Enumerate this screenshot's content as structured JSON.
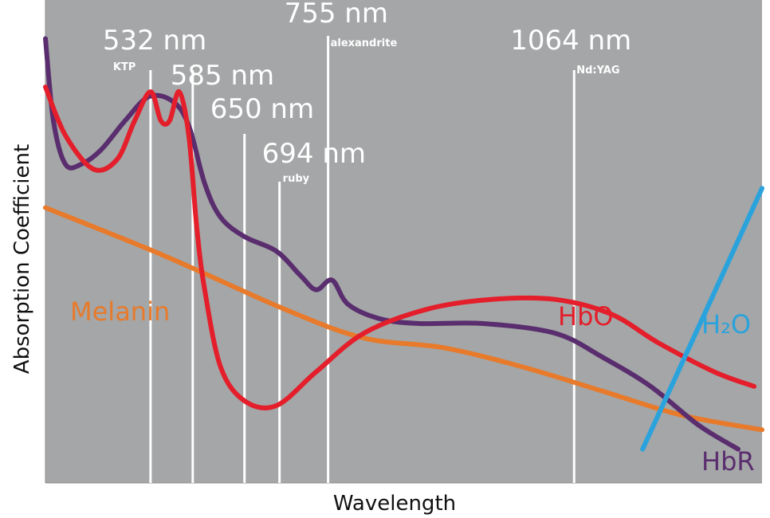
{
  "chart_data": {
    "type": "line",
    "xlabel": "Wavelength",
    "ylabel": "Absorption Coefficient",
    "grid": false,
    "background_color": "#a4a6a7",
    "x_range": [
      400,
      1300
    ],
    "y_range": [
      0,
      1
    ],
    "x_axis_note": "x positions approximate (no numeric axis printed); values in nm relative to marked laser lines",
    "laser_lines": [
      {
        "wavelength": 532,
        "label": "532 nm",
        "sublabel": "KTP"
      },
      {
        "wavelength": 585,
        "label": "585 nm",
        "sublabel": ""
      },
      {
        "wavelength": 650,
        "label": "650 nm",
        "sublabel": ""
      },
      {
        "wavelength": 694,
        "label": "694 nm",
        "sublabel": "ruby"
      },
      {
        "wavelength": 755,
        "label": "755 nm",
        "sublabel": "alexandrite"
      },
      {
        "wavelength": 1064,
        "label": "1064 nm",
        "sublabel": "Nd:YAG"
      }
    ],
    "series": [
      {
        "name": "HbR",
        "color": "#5a2d6e",
        "x": [
          400,
          410,
          425,
          445,
          470,
          500,
          530,
          560,
          580,
          600,
          620,
          650,
          690,
          720,
          740,
          760,
          780,
          820,
          870,
          950,
          1040,
          1100,
          1160,
          1220,
          1270
        ],
        "y": [
          0.92,
          0.75,
          0.66,
          0.66,
          0.69,
          0.75,
          0.8,
          0.79,
          0.74,
          0.62,
          0.55,
          0.51,
          0.48,
          0.43,
          0.4,
          0.42,
          0.37,
          0.34,
          0.33,
          0.33,
          0.31,
          0.26,
          0.2,
          0.12,
          0.07
        ]
      },
      {
        "name": "HbO",
        "color": "#e41e2a",
        "x": [
          400,
          425,
          460,
          490,
          512,
          532,
          545,
          556,
          568,
          580,
          590,
          600,
          620,
          650,
          690,
          740,
          800,
          880,
          960,
          1040,
          1110,
          1170,
          1240,
          1290
        ],
        "y": [
          0.82,
          0.72,
          0.65,
          0.67,
          0.75,
          0.81,
          0.75,
          0.75,
          0.81,
          0.72,
          0.53,
          0.4,
          0.24,
          0.17,
          0.16,
          0.23,
          0.31,
          0.36,
          0.38,
          0.38,
          0.35,
          0.29,
          0.23,
          0.2
        ]
      },
      {
        "name": "Melanin",
        "color": "#e87a2b",
        "x": [
          400,
          550,
          700,
          800,
          900,
          1000,
          1100,
          1200,
          1300
        ],
        "y": [
          0.57,
          0.47,
          0.36,
          0.3,
          0.28,
          0.24,
          0.19,
          0.14,
          0.11
        ]
      },
      {
        "name": "H₂O",
        "color": "#2aa3dd",
        "x": [
          1150,
          1300
        ],
        "y": [
          0.07,
          0.61
        ]
      }
    ]
  }
}
